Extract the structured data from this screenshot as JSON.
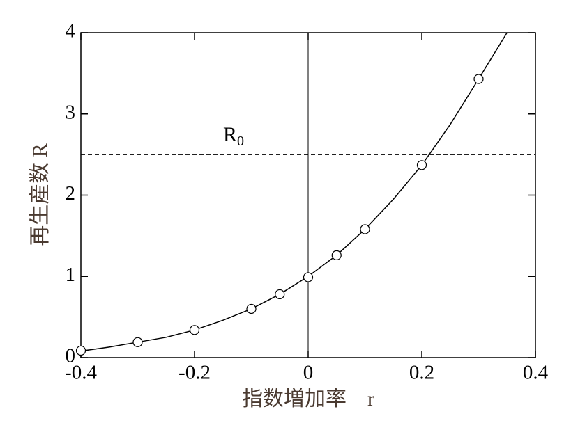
{
  "chart_data": {
    "type": "line",
    "x_label": "指数増加率　r",
    "y_label": "再生産数 R",
    "xlim": [
      -0.4,
      0.4
    ],
    "xticks": [
      -0.4,
      -0.2,
      0,
      0.2,
      0.4
    ],
    "ylim": [
      0,
      4
    ],
    "yticks": [
      0,
      1,
      2,
      3,
      4
    ],
    "series": [
      {
        "style": "curve",
        "color": "#000000",
        "x": [
          -0.4,
          -0.35,
          -0.3,
          -0.25,
          -0.2,
          -0.15,
          -0.1,
          -0.05,
          0,
          0.05,
          0.1,
          0.15,
          0.2,
          0.25,
          0.3,
          0.35
        ],
        "values": [
          0.08,
          0.13,
          0.19,
          0.25,
          0.34,
          0.46,
          0.6,
          0.78,
          1.0,
          1.26,
          1.58,
          1.95,
          2.37,
          2.87,
          3.43,
          4.0
        ]
      },
      {
        "style": "markers",
        "color": "#000000",
        "x": [
          -0.4,
          -0.3,
          -0.2,
          -0.1,
          -0.05,
          0,
          0.05,
          0.1,
          0.2,
          0.3
        ],
        "values": [
          0.086,
          0.19,
          0.34,
          0.6,
          0.78,
          0.99,
          1.26,
          1.58,
          2.37,
          3.43
        ]
      }
    ],
    "reference_line": {
      "value": 2.5,
      "label": "R",
      "label_sub": "0"
    },
    "vertical_line": 0
  }
}
